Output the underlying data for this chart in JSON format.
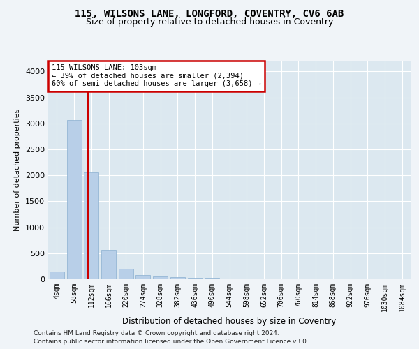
{
  "title1": "115, WILSONS LANE, LONGFORD, COVENTRY, CV6 6AB",
  "title2": "Size of property relative to detached houses in Coventry",
  "xlabel": "Distribution of detached houses by size in Coventry",
  "ylabel": "Number of detached properties",
  "bar_color": "#b8cfe8",
  "bar_edge_color": "#8aafd0",
  "categories": [
    "4sqm",
    "58sqm",
    "112sqm",
    "166sqm",
    "220sqm",
    "274sqm",
    "328sqm",
    "382sqm",
    "436sqm",
    "490sqm",
    "544sqm",
    "598sqm",
    "652sqm",
    "706sqm",
    "760sqm",
    "814sqm",
    "868sqm",
    "922sqm",
    "976sqm",
    "1030sqm",
    "1084sqm"
  ],
  "values": [
    150,
    3060,
    2060,
    570,
    200,
    80,
    60,
    45,
    30,
    25,
    0,
    0,
    0,
    0,
    0,
    0,
    0,
    0,
    0,
    0,
    0
  ],
  "ylim": [
    0,
    4200
  ],
  "yticks": [
    0,
    500,
    1000,
    1500,
    2000,
    2500,
    3000,
    3500,
    4000
  ],
  "property_line_x": 1.82,
  "annotation_line1": "115 WILSONS LANE: 103sqm",
  "annotation_line2": "← 39% of detached houses are smaller (2,394)",
  "annotation_line3": "60% of semi-detached houses are larger (3,658) →",
  "annotation_box_color": "#ffffff",
  "annotation_box_edge": "#cc0000",
  "line_color": "#cc0000",
  "bg_color": "#dce8f0",
  "fig_bg_color": "#f0f4f8",
  "footer1": "Contains HM Land Registry data © Crown copyright and database right 2024.",
  "footer2": "Contains public sector information licensed under the Open Government Licence v3.0."
}
